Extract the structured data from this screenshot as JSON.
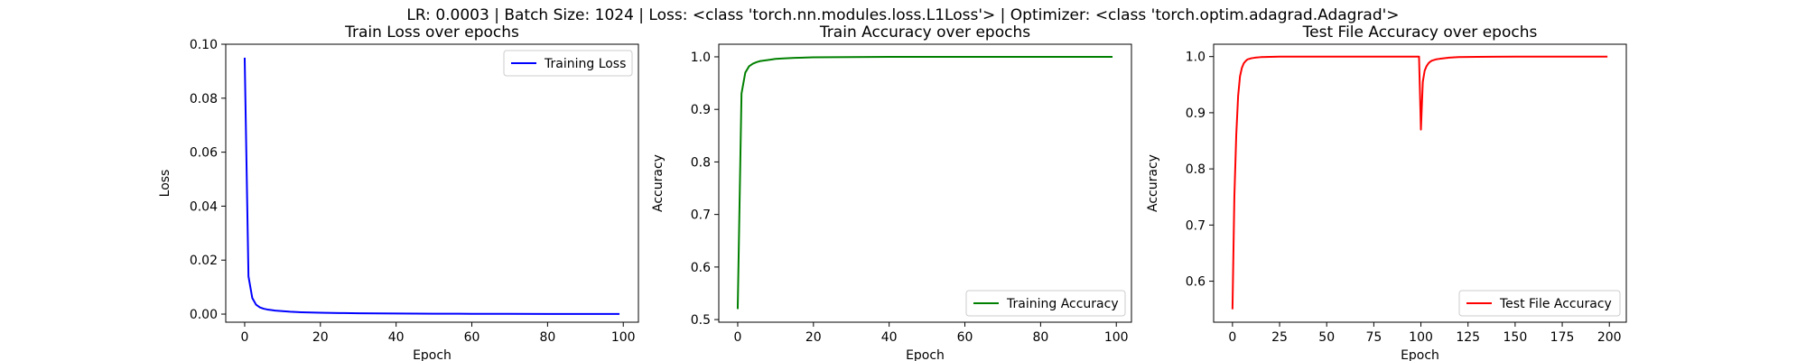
{
  "figure": {
    "suptitle": "LR: 0.0003 | Batch Size: 1024 | Loss: <class 'torch.nn.modules.loss.L1Loss'> | Optimizer: <class 'torch.optim.adagrad.Adagrad'>"
  },
  "chart_data": [
    {
      "type": "line",
      "title": "Train Loss over epochs",
      "xlabel": "Epoch",
      "ylabel": "Loss",
      "xlim": [
        -5,
        104
      ],
      "ylim": [
        -0.003,
        0.1
      ],
      "xticks": [
        0,
        20,
        40,
        60,
        80,
        100
      ],
      "yticks": [
        0.0,
        0.02,
        0.04,
        0.06,
        0.08,
        0.1
      ],
      "ytick_labels": [
        "0.00",
        "0.02",
        "0.04",
        "0.06",
        "0.08",
        "0.10"
      ],
      "legend_position": "upper right",
      "grid": false,
      "series": [
        {
          "name": "Training Loss",
          "color": "#0000ff",
          "x": [
            0,
            1,
            2,
            3,
            4,
            5,
            6,
            7,
            8,
            10,
            12,
            15,
            20,
            25,
            30,
            40,
            50,
            60,
            70,
            80,
            90,
            99
          ],
          "y": [
            0.095,
            0.014,
            0.006,
            0.0035,
            0.0025,
            0.002,
            0.0017,
            0.0015,
            0.0013,
            0.0011,
            0.0009,
            0.0007,
            0.0005,
            0.0004,
            0.0003,
            0.0002,
            0.00015,
            0.0001,
            8e-05,
            6e-05,
            5e-05,
            4e-05
          ]
        }
      ]
    },
    {
      "type": "line",
      "title": "Train Accuracy over epochs",
      "xlabel": "Epoch",
      "ylabel": "Accuracy",
      "xlim": [
        -5,
        104
      ],
      "ylim": [
        0.495,
        1.024
      ],
      "xticks": [
        0,
        20,
        40,
        60,
        80,
        100
      ],
      "yticks": [
        0.5,
        0.6,
        0.7,
        0.8,
        0.9,
        1.0
      ],
      "ytick_labels": [
        "0.5",
        "0.6",
        "0.7",
        "0.8",
        "0.9",
        "1.0"
      ],
      "legend_position": "lower right",
      "grid": false,
      "series": [
        {
          "name": "Training Accuracy",
          "color": "#008000",
          "x": [
            0,
            1,
            2,
            3,
            4,
            5,
            6,
            8,
            10,
            12,
            15,
            20,
            30,
            40,
            60,
            80,
            99
          ],
          "y": [
            0.52,
            0.93,
            0.97,
            0.982,
            0.987,
            0.99,
            0.992,
            0.994,
            0.996,
            0.997,
            0.998,
            0.999,
            0.9995,
            1.0,
            1.0,
            1.0,
            1.0
          ]
        }
      ]
    },
    {
      "type": "line",
      "title": "Test File Accuracy over epochs",
      "xlabel": "Epoch",
      "ylabel": "Accuracy",
      "xlim": [
        -10,
        209
      ],
      "ylim": [
        0.527,
        1.022
      ],
      "xticks": [
        0,
        25,
        50,
        75,
        100,
        125,
        150,
        175,
        200
      ],
      "yticks": [
        0.6,
        0.7,
        0.8,
        0.9,
        1.0
      ],
      "ytick_labels": [
        "0.6",
        "0.7",
        "0.8",
        "0.9",
        "1.0"
      ],
      "legend_position": "lower right",
      "grid": false,
      "series": [
        {
          "name": "Test File Accuracy",
          "color": "#ff0000",
          "x": [
            0,
            1,
            2,
            3,
            4,
            5,
            6,
            7,
            8,
            10,
            12,
            15,
            20,
            25,
            30,
            50,
            75,
            99,
            100,
            101,
            102,
            103,
            104,
            105,
            106,
            108,
            110,
            115,
            120,
            130,
            150,
            175,
            199
          ],
          "y": [
            0.55,
            0.75,
            0.86,
            0.93,
            0.965,
            0.98,
            0.988,
            0.992,
            0.995,
            0.997,
            0.998,
            0.999,
            0.9995,
            1.0,
            1.0,
            1.0,
            1.0,
            1.0,
            0.87,
            0.955,
            0.975,
            0.983,
            0.988,
            0.991,
            0.993,
            0.995,
            0.996,
            0.998,
            0.999,
            0.9995,
            1.0,
            1.0,
            1.0
          ]
        }
      ]
    }
  ]
}
